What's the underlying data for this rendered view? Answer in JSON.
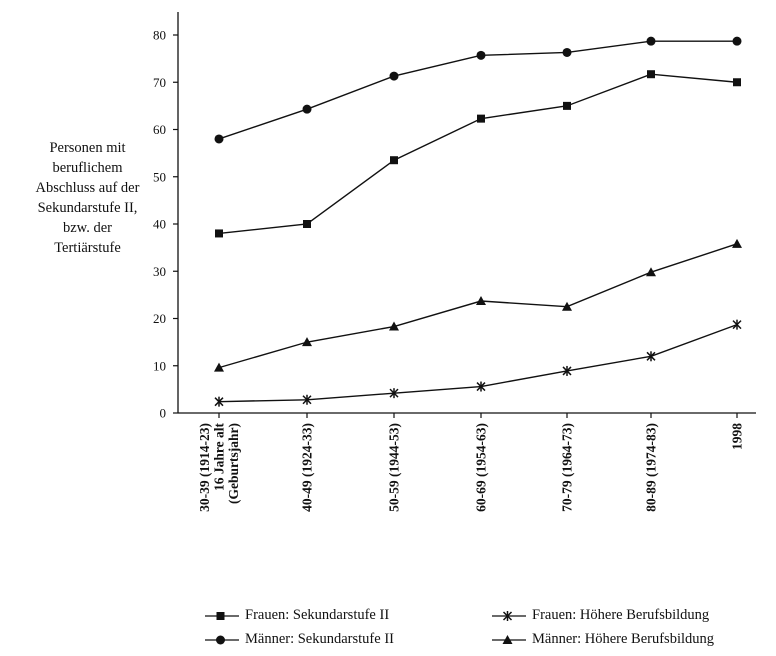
{
  "chart_data": {
    "type": "line",
    "ylabel": "Personen mit\nberuflichem\nAbschluss auf der\nSekundarstufe II,\nbzw. der\nTertiärstufe",
    "xlabel": "",
    "ylim": [
      0,
      80
    ],
    "yticks": [
      0,
      10,
      20,
      30,
      40,
      50,
      60,
      70,
      80
    ],
    "grid": false,
    "legend_position": "bottom",
    "categories": [
      "30-39 (1914-23)\n16 Jahre alt\n(Geburtsjahr)",
      "40-49 (1924-33)",
      "50-59 (1944-53)",
      "60-69 (1954-63)",
      "70-79 (1964-73)",
      "80-89 (1974-83)",
      "1998"
    ],
    "series": [
      {
        "name": "Männer: Sekundarstufe II",
        "marker": "circle",
        "values": [
          58,
          64.3,
          71.3,
          75.7,
          76.3,
          78.7,
          78.7
        ]
      },
      {
        "name": "Frauen: Sekundarstufe II",
        "marker": "square",
        "values": [
          38,
          40,
          53.5,
          62.3,
          65,
          71.7,
          70
        ]
      },
      {
        "name": "Männer: Höhere Berufsbildung",
        "marker": "triangle",
        "values": [
          9.6,
          15,
          18.3,
          23.7,
          22.5,
          29.8,
          35.8
        ]
      },
      {
        "name": "Frauen: Höhere Berufsbildung",
        "marker": "star",
        "values": [
          2.4,
          2.8,
          4.2,
          5.6,
          8.9,
          12,
          18.7
        ]
      }
    ]
  },
  "legend": {
    "frauen_sek": "Frauen: Sekundarstufe II",
    "frauen_hb": "Frauen: Höhere Berufsbildung",
    "maenner_sek": "Männer: Sekundarstufe II",
    "maenner_hb": "Männer: Höhere Berufsbildung"
  }
}
